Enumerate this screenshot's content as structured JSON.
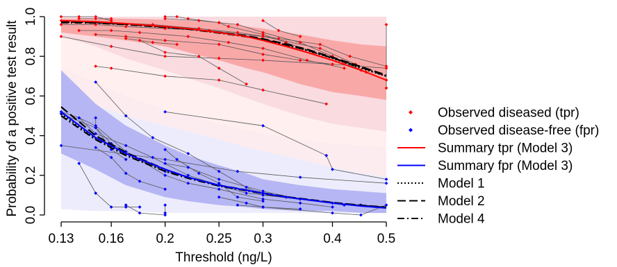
{
  "chart_data": {
    "type": "scatter",
    "xlabel": "Threshold (ng/L)",
    "ylabel": "Probability of a positive test result",
    "x_scale": "log",
    "xlim": [
      0.13,
      0.5
    ],
    "ylim": [
      0,
      1
    ],
    "x_ticks": [
      0.13,
      0.16,
      0.2,
      0.25,
      0.3,
      0.4,
      0.5
    ],
    "x_tick_labels": [
      "0.13",
      "0.16",
      "0.2",
      "0.25",
      "0.3",
      "0.4",
      "0.5"
    ],
    "y_ticks": [
      0,
      0.2,
      0.4,
      0.6,
      0.8,
      1.0
    ],
    "y_tick_labels": [
      "0.0",
      "0.2",
      "0.4",
      "0.6",
      "0.8",
      "1.0"
    ],
    "colors": {
      "tpr": "#ff0000",
      "fpr": "#0000ff",
      "tpr_band_light": "#ffecec",
      "tpr_band_mid": "#f7d6dc",
      "tpr_band_dark": "#f9a8a8",
      "fpr_band_light": "#ececfc",
      "fpr_band_dark": "#b6b6f4",
      "study_line": "#555555"
    },
    "legend": [
      {
        "label": "Observed diseased (tpr)",
        "marker": "diamond",
        "color": "#ff0000"
      },
      {
        "label": "Observed disease-free (fpr)",
        "marker": "diamond",
        "color": "#0000ff"
      },
      {
        "label": "Summary tpr (Model 3)",
        "line": "solid",
        "color": "#ff0000"
      },
      {
        "label": "Summary fpr (Model 3)",
        "line": "solid",
        "color": "#0000ff"
      },
      {
        "label": "Model 1",
        "line": "dotted",
        "color": "#000000"
      },
      {
        "label": "Model 2",
        "line": "dashed",
        "color": "#000000"
      },
      {
        "label": "Model 4",
        "line": "dashdot",
        "color": "#000000"
      }
    ],
    "legend_position": "right",
    "bands": {
      "x": [
        0.13,
        0.15,
        0.17,
        0.2,
        0.22,
        0.25,
        0.28,
        0.3,
        0.35,
        0.4,
        0.45,
        0.5
      ],
      "tpr_outer_upper": [
        1,
        1,
        1,
        1,
        1,
        1,
        1,
        1,
        1,
        1,
        1,
        1
      ],
      "tpr_outer_lower": [
        0.62,
        0.55,
        0.5,
        0.45,
        0.42,
        0.38,
        0.34,
        0.32,
        0.28,
        0.24,
        0.21,
        0.19
      ],
      "tpr_mid_lower": [
        0.9,
        0.85,
        0.79,
        0.73,
        0.69,
        0.64,
        0.59,
        0.56,
        0.5,
        0.46,
        0.44,
        0.42
      ],
      "tpr_inner_upper": [
        0.99,
        0.99,
        0.99,
        0.985,
        0.98,
        0.97,
        0.95,
        0.94,
        0.91,
        0.88,
        0.86,
        0.85
      ],
      "tpr_inner_lower": [
        0.92,
        0.9,
        0.88,
        0.85,
        0.82,
        0.78,
        0.74,
        0.72,
        0.66,
        0.62,
        0.6,
        0.58
      ],
      "fpr_outer_upper": [
        0.74,
        0.67,
        0.6,
        0.53,
        0.5,
        0.46,
        0.43,
        0.41,
        0.38,
        0.36,
        0.35,
        0.34
      ],
      "fpr_outer_lower": [
        0.03,
        0.02,
        0.02,
        0.01,
        0.01,
        0.01,
        0.01,
        0.01,
        0.01,
        0.01,
        0.01,
        0.01
      ],
      "fpr_inner_upper": [
        0.73,
        0.56,
        0.45,
        0.35,
        0.3,
        0.25,
        0.21,
        0.18,
        0.15,
        0.13,
        0.12,
        0.11
      ],
      "fpr_inner_lower": [
        0.31,
        0.23,
        0.15,
        0.09,
        0.07,
        0.05,
        0.04,
        0.03,
        0.02,
        0.02,
        0.01,
        0.01
      ]
    },
    "summary_curves": {
      "x": [
        0.13,
        0.15,
        0.17,
        0.2,
        0.22,
        0.25,
        0.28,
        0.3,
        0.33,
        0.36,
        0.4,
        0.45,
        0.5
      ],
      "tpr_model3": [
        0.98,
        0.975,
        0.965,
        0.95,
        0.94,
        0.92,
        0.9,
        0.88,
        0.85,
        0.82,
        0.78,
        0.73,
        0.68
      ],
      "tpr_model1": [
        0.975,
        0.972,
        0.963,
        0.948,
        0.938,
        0.919,
        0.9,
        0.884,
        0.857,
        0.83,
        0.79,
        0.74,
        0.7
      ],
      "tpr_model2": [
        0.972,
        0.97,
        0.962,
        0.948,
        0.939,
        0.921,
        0.903,
        0.888,
        0.862,
        0.835,
        0.795,
        0.748,
        0.705
      ],
      "tpr_model4": [
        0.97,
        0.968,
        0.96,
        0.946,
        0.937,
        0.918,
        0.899,
        0.884,
        0.858,
        0.831,
        0.792,
        0.745,
        0.701
      ],
      "fpr_model3": [
        0.52,
        0.39,
        0.31,
        0.23,
        0.19,
        0.15,
        0.125,
        0.11,
        0.09,
        0.077,
        0.06,
        0.045,
        0.035
      ],
      "fpr_model1": [
        0.51,
        0.385,
        0.305,
        0.225,
        0.188,
        0.148,
        0.124,
        0.109,
        0.09,
        0.077,
        0.061,
        0.047,
        0.037
      ],
      "fpr_model2": [
        0.545,
        0.4,
        0.315,
        0.23,
        0.19,
        0.15,
        0.126,
        0.111,
        0.092,
        0.079,
        0.063,
        0.049,
        0.039
      ],
      "fpr_model4": [
        0.5,
        0.38,
        0.3,
        0.22,
        0.185,
        0.146,
        0.122,
        0.108,
        0.09,
        0.077,
        0.062,
        0.048,
        0.038
      ]
    },
    "tpr_studies": [
      [
        [
          0.13,
          1.0
        ],
        [
          0.14,
          1.0
        ],
        [
          0.15,
          1.0
        ],
        [
          0.16,
          0.98
        ]
      ],
      [
        [
          0.14,
          0.99
        ],
        [
          0.15,
          0.99
        ],
        [
          0.16,
          0.99
        ]
      ],
      [
        [
          0.2,
          1.0
        ],
        [
          0.21,
          1.0
        ],
        [
          0.22,
          0.99
        ],
        [
          0.25,
          0.97
        ],
        [
          0.27,
          0.96
        ],
        [
          0.3,
          0.92
        ],
        [
          0.35,
          0.87
        ],
        [
          0.4,
          0.8
        ],
        [
          0.45,
          0.73
        ],
        [
          0.5,
          0.68
        ]
      ],
      [
        [
          0.2,
          0.99
        ],
        [
          0.23,
          0.98
        ],
        [
          0.25,
          0.97
        ],
        [
          0.26,
          0.95
        ],
        [
          0.3,
          0.91
        ],
        [
          0.33,
          0.87
        ],
        [
          0.37,
          0.82
        ],
        [
          0.42,
          0.77
        ],
        [
          0.46,
          0.72
        ]
      ],
      [
        [
          0.13,
          0.96
        ],
        [
          0.15,
          0.96
        ],
        [
          0.17,
          0.95
        ],
        [
          0.2,
          0.94
        ],
        [
          0.24,
          0.93
        ],
        [
          0.3,
          0.9
        ],
        [
          0.38,
          0.84
        ],
        [
          0.44,
          0.76
        ]
      ],
      [
        [
          0.14,
          0.93
        ],
        [
          0.16,
          0.93
        ],
        [
          0.18,
          0.92
        ],
        [
          0.22,
          0.9
        ],
        [
          0.26,
          0.87
        ],
        [
          0.3,
          0.84
        ],
        [
          0.36,
          0.78
        ],
        [
          0.42,
          0.74
        ]
      ],
      [
        [
          0.13,
          0.98
        ],
        [
          0.16,
          0.97
        ],
        [
          0.19,
          0.96
        ],
        [
          0.23,
          0.94
        ],
        [
          0.27,
          0.92
        ],
        [
          0.32,
          0.89
        ],
        [
          0.38,
          0.86
        ],
        [
          0.43,
          0.8
        ],
        [
          0.5,
          0.75
        ]
      ],
      [
        [
          0.15,
          0.91
        ],
        [
          0.17,
          0.9
        ],
        [
          0.2,
          0.88
        ],
        [
          0.25,
          0.86
        ],
        [
          0.3,
          0.81
        ],
        [
          0.35,
          0.78
        ],
        [
          0.4,
          0.76
        ]
      ],
      [
        [
          0.3,
          0.98
        ],
        [
          0.32,
          0.93
        ],
        [
          0.35,
          0.9
        ]
      ],
      [
        [
          0.17,
          0.89
        ],
        [
          0.19,
          0.87
        ],
        [
          0.21,
          0.86
        ]
      ],
      [
        [
          0.18,
          0.88
        ],
        [
          0.2,
          0.82
        ],
        [
          0.23,
          0.8
        ],
        [
          0.25,
          0.74
        ],
        [
          0.28,
          0.66
        ]
      ],
      [
        [
          0.13,
          0.9
        ],
        [
          0.16,
          0.85
        ],
        [
          0.2,
          0.8
        ],
        [
          0.25,
          0.79
        ],
        [
          0.3,
          0.78
        ],
        [
          0.4,
          0.76
        ],
        [
          0.5,
          0.74
        ]
      ],
      [
        [
          0.15,
          0.75
        ],
        [
          0.16,
          0.74
        ],
        [
          0.2,
          0.7
        ],
        [
          0.25,
          0.68
        ],
        [
          0.3,
          0.63
        ],
        [
          0.39,
          0.56
        ]
      ],
      [
        [
          0.5,
          0.96
        ],
        [
          0.5,
          0.64
        ]
      ]
    ],
    "fpr_studies": [
      [
        [
          0.13,
          0.52
        ],
        [
          0.14,
          0.49
        ],
        [
          0.15,
          0.45
        ],
        [
          0.17,
          0.32
        ],
        [
          0.2,
          0.2
        ],
        [
          0.22,
          0.16
        ],
        [
          0.25,
          0.13
        ],
        [
          0.3,
          0.08
        ],
        [
          0.35,
          0.06
        ],
        [
          0.4,
          0.04
        ]
      ],
      [
        [
          0.13,
          0.51
        ],
        [
          0.15,
          0.44
        ],
        [
          0.16,
          0.36
        ],
        [
          0.18,
          0.28
        ],
        [
          0.2,
          0.22
        ],
        [
          0.25,
          0.15
        ],
        [
          0.28,
          0.11
        ],
        [
          0.33,
          0.09
        ]
      ],
      [
        [
          0.14,
          0.49
        ],
        [
          0.15,
          0.41
        ],
        [
          0.17,
          0.35
        ],
        [
          0.19,
          0.29
        ],
        [
          0.22,
          0.2
        ],
        [
          0.25,
          0.15
        ],
        [
          0.3,
          0.11
        ]
      ],
      [
        [
          0.15,
          0.67
        ],
        [
          0.17,
          0.5
        ],
        [
          0.19,
          0.39
        ],
        [
          0.22,
          0.31
        ],
        [
          0.25,
          0.22
        ],
        [
          0.28,
          0.14
        ],
        [
          0.3,
          0.1
        ],
        [
          0.35,
          0.08
        ],
        [
          0.4,
          0.06
        ],
        [
          0.45,
          0.05
        ]
      ],
      [
        [
          0.2,
          0.52
        ],
        [
          0.3,
          0.45
        ],
        [
          0.39,
          0.3
        ],
        [
          0.4,
          0.23
        ],
        [
          0.5,
          0.18
        ]
      ],
      [
        [
          0.13,
          0.35
        ],
        [
          0.2,
          0.28
        ],
        [
          0.27,
          0.22
        ],
        [
          0.35,
          0.19
        ],
        [
          0.5,
          0.16
        ]
      ],
      [
        [
          0.14,
          0.26
        ],
        [
          0.15,
          0.11
        ],
        [
          0.16,
          0.04
        ],
        [
          0.17,
          0.04
        ],
        [
          0.18,
          0.04
        ]
      ],
      [
        [
          0.15,
          0.34
        ],
        [
          0.16,
          0.29
        ],
        [
          0.17,
          0.21
        ],
        [
          0.18,
          0.17
        ],
        [
          0.2,
          0.13
        ]
      ],
      [
        [
          0.2,
          0.33
        ],
        [
          0.21,
          0.28
        ],
        [
          0.23,
          0.21
        ],
        [
          0.25,
          0.16
        ],
        [
          0.27,
          0.09
        ],
        [
          0.3,
          0.07
        ]
      ],
      [
        [
          0.17,
          0.05
        ],
        [
          0.18,
          0.01
        ],
        [
          0.2,
          0.0
        ]
      ],
      [
        [
          0.2,
          0.26
        ],
        [
          0.22,
          0.24
        ],
        [
          0.25,
          0.18
        ],
        [
          0.3,
          0.12
        ],
        [
          0.35,
          0.08
        ],
        [
          0.42,
          0.05
        ]
      ],
      [
        [
          0.15,
          0.49
        ],
        [
          0.15,
          0.44
        ],
        [
          0.16,
          0.33
        ],
        [
          0.17,
          0.28
        ]
      ],
      [
        [
          0.2,
          0.05
        ],
        [
          0.2,
          0.01
        ]
      ],
      [
        [
          0.27,
          0.05
        ],
        [
          0.3,
          0.04
        ],
        [
          0.4,
          0.01
        ],
        [
          0.45,
          0.0
        ],
        [
          0.5,
          0.05
        ]
      ],
      [
        [
          0.25,
          0.09
        ],
        [
          0.28,
          0.06
        ],
        [
          0.3,
          0.04
        ],
        [
          0.35,
          0.03
        ]
      ]
    ]
  }
}
